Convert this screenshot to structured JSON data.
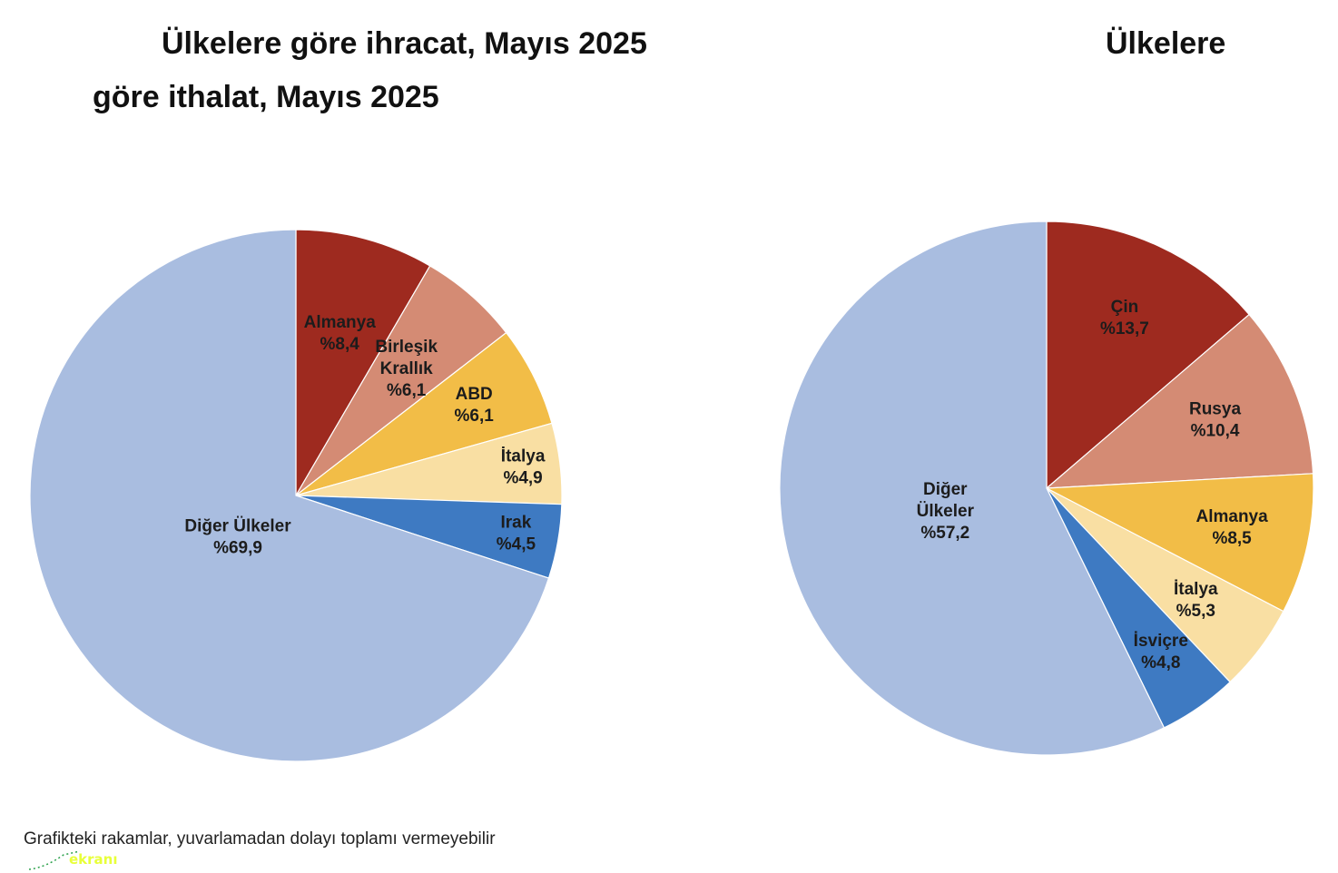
{
  "titles": {
    "export_title": "Ülkelere göre ihracat, Mayıs 2025",
    "import_title_part1": "Ülkelere",
    "import_title_part2": "göre ithalat, Mayıs 2025"
  },
  "chart_data": [
    {
      "type": "pie",
      "title": "Ülkelere göre ihracat, Mayıs 2025",
      "slices": [
        {
          "name": "Almanya",
          "lines": [
            "Almanya"
          ],
          "value": 8.4,
          "value_label": "%8,4",
          "color": "#9e2a1f"
        },
        {
          "name": "Birleşik Krallık",
          "lines": [
            "Birleşik",
            "Krallık"
          ],
          "value": 6.1,
          "value_label": "%6,1",
          "color": "#d48b74"
        },
        {
          "name": "ABD",
          "lines": [
            "ABD"
          ],
          "value": 6.1,
          "value_label": "%6,1",
          "color": "#f2bd47"
        },
        {
          "name": "İtalya",
          "lines": [
            "İtalya"
          ],
          "value": 4.9,
          "value_label": "%4,9",
          "color": "#f9dfa3"
        },
        {
          "name": "Irak",
          "lines": [
            "Irak"
          ],
          "value": 4.5,
          "value_label": "%4,5",
          "color": "#3e7ac2"
        },
        {
          "name": "Diğer Ülkeler",
          "lines": [
            "Diğer Ülkeler"
          ],
          "value": 69.9,
          "value_label": "%69,9",
          "color": "#a9bde0"
        }
      ]
    },
    {
      "type": "pie",
      "title": "Ülkelere göre ithalat, Mayıs 2025",
      "slices": [
        {
          "name": "Çin",
          "lines": [
            "Çin"
          ],
          "value": 13.7,
          "value_label": "%13,7",
          "color": "#9e2a1f"
        },
        {
          "name": "Rusya",
          "lines": [
            "Rusya"
          ],
          "value": 10.4,
          "value_label": "%10,4",
          "color": "#d48b74"
        },
        {
          "name": "Almanya",
          "lines": [
            "Almanya"
          ],
          "value": 8.5,
          "value_label": "%8,5",
          "color": "#f2bd47"
        },
        {
          "name": "İtalya",
          "lines": [
            "İtalya"
          ],
          "value": 5.3,
          "value_label": "%5,3",
          "color": "#f9dfa3"
        },
        {
          "name": "İsviçre",
          "lines": [
            "İsviçre"
          ],
          "value": 4.8,
          "value_label": "%4,8",
          "color": "#3e7ac2"
        },
        {
          "name": "Diğer Ülkeler",
          "lines": [
            "Diğer",
            "Ülkeler"
          ],
          "value": 57.2,
          "value_label": "%57,2",
          "color": "#a9bde0"
        }
      ]
    }
  ],
  "footnote": "Grafikteki rakamlar, yuvarlamadan dolayı toplamı vermeyebilir",
  "logo": {
    "text": "ekranı"
  }
}
